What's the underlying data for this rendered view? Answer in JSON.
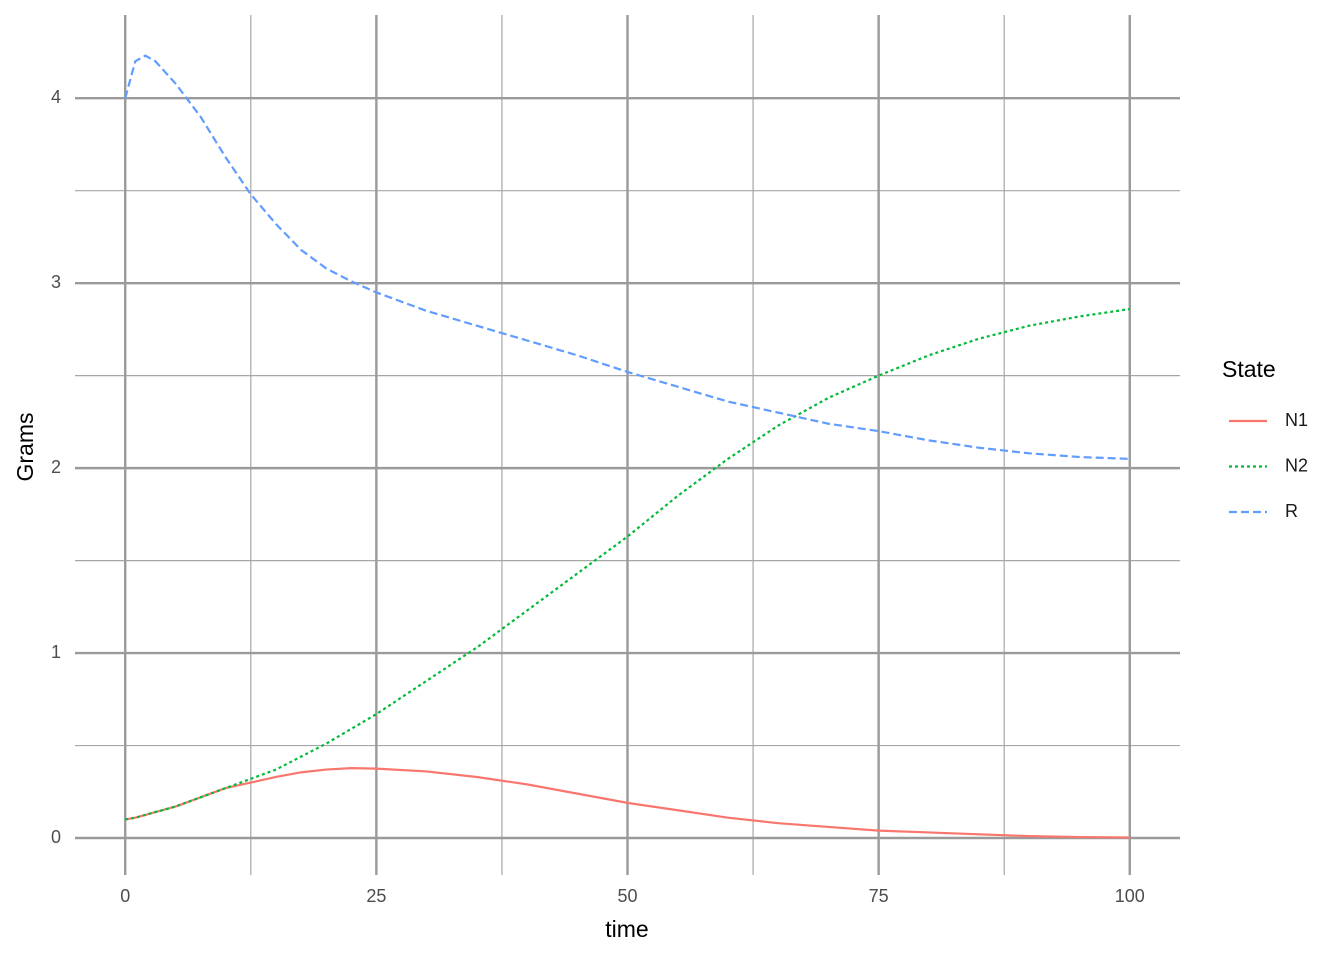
{
  "chart_data": {
    "type": "line",
    "x_label": "time",
    "y_label": "Grams",
    "legend_title": "State",
    "x": [
      0,
      1,
      2,
      3,
      5,
      7.5,
      10,
      12.5,
      15,
      17.5,
      20,
      22.5,
      25,
      30,
      35,
      40,
      45,
      50,
      55,
      60,
      65,
      70,
      75,
      80,
      85,
      90,
      95,
      100
    ],
    "series": [
      {
        "name": "N1",
        "color": "#F8766D",
        "dash": "solid",
        "values": [
          0.1,
          0.11,
          0.125,
          0.14,
          0.17,
          0.22,
          0.27,
          0.3,
          0.33,
          0.355,
          0.37,
          0.378,
          0.375,
          0.36,
          0.33,
          0.29,
          0.24,
          0.19,
          0.15,
          0.11,
          0.08,
          0.06,
          0.04,
          0.03,
          0.02,
          0.01,
          0.005,
          0.003
        ]
      },
      {
        "name": "N2",
        "color": "#00BA38",
        "dash": "dotted",
        "values": [
          0.1,
          0.11,
          0.125,
          0.14,
          0.17,
          0.22,
          0.27,
          0.32,
          0.37,
          0.44,
          0.51,
          0.59,
          0.67,
          0.85,
          1.03,
          1.23,
          1.43,
          1.63,
          1.85,
          2.05,
          2.23,
          2.38,
          2.5,
          2.61,
          2.7,
          2.77,
          2.82,
          2.86
        ]
      },
      {
        "name": "R",
        "color": "#619CFF",
        "dash": "dashed",
        "values": [
          4.0,
          4.2,
          4.23,
          4.2,
          4.08,
          3.9,
          3.68,
          3.48,
          3.32,
          3.18,
          3.08,
          3.01,
          2.95,
          2.85,
          2.77,
          2.69,
          2.61,
          2.52,
          2.44,
          2.36,
          2.3,
          2.24,
          2.2,
          2.15,
          2.11,
          2.08,
          2.06,
          2.05
        ]
      }
    ],
    "xlim": [
      -5,
      105
    ],
    "ylim": [
      -0.2,
      4.45
    ],
    "xticks": [
      0,
      25,
      50,
      75,
      100
    ],
    "yticks": [
      0,
      1,
      2,
      3,
      4
    ],
    "x_minor_grid": [
      12.5,
      37.5,
      62.5,
      87.5
    ],
    "y_minor_grid": [
      0.5,
      1.5,
      2.5,
      3.5
    ],
    "grid": true,
    "legend_position": "right"
  }
}
